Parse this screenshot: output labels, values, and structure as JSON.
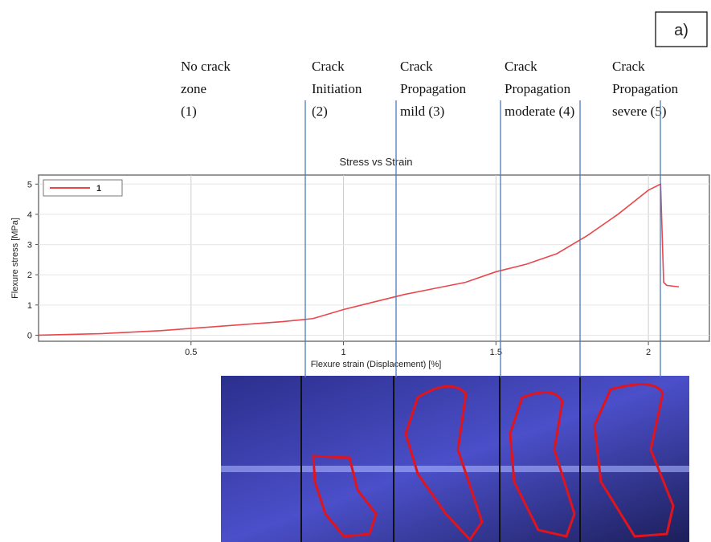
{
  "chart_data": {
    "type": "line",
    "panel_label": "a)",
    "annotations": [
      [
        "No crack",
        "zone",
        "(1)"
      ],
      [
        "Crack",
        "Initiation",
        "(2)"
      ],
      [
        "Crack",
        "Propagation",
        "mild  (3)"
      ],
      [
        "Crack",
        "Propagation",
        "moderate (4)"
      ],
      [
        "Crack",
        "Propagation",
        "severe (5)"
      ]
    ],
    "title": "Stress vs Strain",
    "x_label": "Flexure strain (Displacement) [%]",
    "y_label": "Flexure stress [MPa]",
    "x": [
      0,
      0.2,
      0.4,
      0.6,
      0.8,
      0.9,
      1.0,
      1.1,
      1.2,
      1.3,
      1.4,
      1.5,
      1.6,
      1.7,
      1.8,
      1.9,
      2.0,
      2.04,
      2.05,
      2.06,
      2.1
    ],
    "series": [
      {
        "name": "1",
        "color": "#e8474c",
        "values": [
          0,
          0.05,
          0.15,
          0.3,
          0.45,
          0.55,
          0.85,
          1.1,
          1.35,
          1.55,
          1.75,
          2.1,
          2.35,
          2.7,
          3.3,
          4.0,
          4.8,
          5.0,
          1.75,
          1.65,
          1.6
        ]
      }
    ],
    "xlim": [
      0,
      2.2
    ],
    "ylim": [
      -0.2,
      5.3
    ],
    "xticks": [
      0.5,
      1,
      1.5,
      2
    ],
    "yticks": [
      0,
      1,
      2,
      3,
      4,
      5
    ],
    "grid": true,
    "legend": "upper left"
  }
}
